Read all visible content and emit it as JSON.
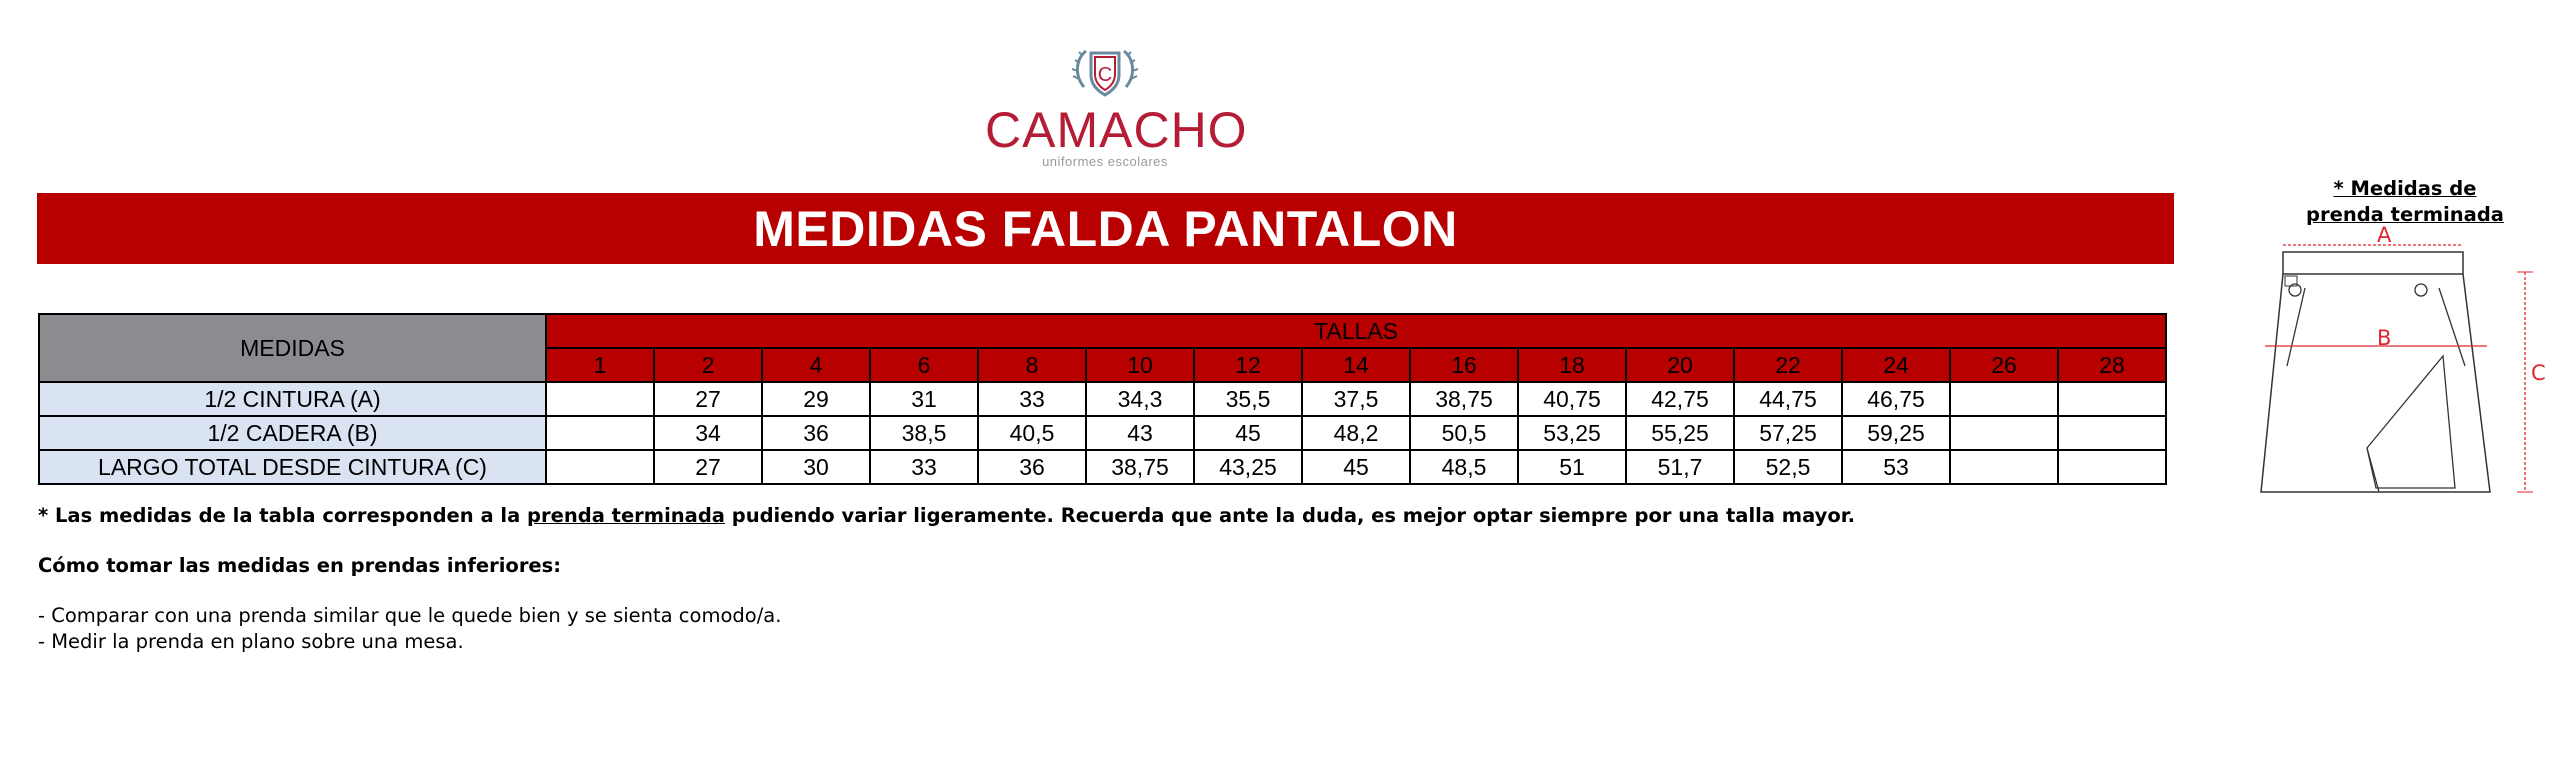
{
  "logo": {
    "name": "CAMACHO",
    "tagline": "uniformes escolares",
    "emblem_letter": "C"
  },
  "banner": {
    "title": "MEDIDAS FALDA PANTALON"
  },
  "table": {
    "label_header": "MEDIDAS",
    "group_header": "TALLAS",
    "sizes": [
      "1",
      "2",
      "4",
      "6",
      "8",
      "10",
      "12",
      "14",
      "16",
      "18",
      "20",
      "22",
      "24",
      "26",
      "28"
    ],
    "rows": [
      {
        "label": "1/2 CINTURA (A)",
        "values": [
          "",
          "27",
          "29",
          "31",
          "33",
          "34,3",
          "35,5",
          "37,5",
          "38,75",
          "40,75",
          "42,75",
          "44,75",
          "46,75",
          "",
          ""
        ]
      },
      {
        "label": "1/2 CADERA (B)",
        "values": [
          "",
          "34",
          "36",
          "38,5",
          "40,5",
          "43",
          "45",
          "48,2",
          "50,5",
          "53,25",
          "55,25",
          "57,25",
          "59,25",
          "",
          ""
        ]
      },
      {
        "label": "LARGO TOTAL DESDE CINTURA (C)",
        "values": [
          "",
          "27",
          "30",
          "33",
          "36",
          "38,75",
          "43,25",
          "45",
          "48,5",
          "51",
          "51,7",
          "52,5",
          "53",
          "",
          ""
        ]
      }
    ]
  },
  "notes": {
    "line1_a": "* Las medidas de la tabla corresponden a la ",
    "line1_link": "prenda terminada",
    "line1_b": " pudiendo variar ligeramente. Recuerda que ante la duda, es mejor optar siempre por una talla mayor.",
    "line2": "Cómo tomar las medidas en prendas inferiores:",
    "line3": "- Comparar con una prenda similar que le quede bien y se sienta comodo/a.",
    "line4": "- Medir la prenda en plano sobre una mesa."
  },
  "figure": {
    "title_line1": "* Medidas de",
    "title_line2": "prenda terminada",
    "label_a": "A",
    "label_b": "B",
    "label_c": "C"
  },
  "colors": {
    "brand_red": "#b80000",
    "logo_red": "#b51d36",
    "header_gray": "#8c8b8f",
    "label_blue": "#d9e3f1",
    "measure_red": "#e0262e"
  }
}
